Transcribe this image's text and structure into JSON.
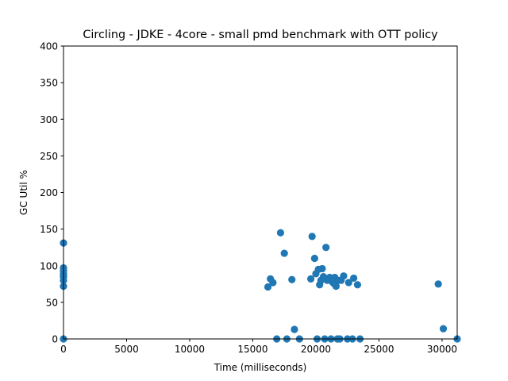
{
  "chart_data": {
    "type": "scatter",
    "title": "Circling - JDKE - 4core -  small pmd benchmark with OTT policy",
    "xlabel": "Time (milliseconds)",
    "ylabel": "GC Util %",
    "xlim": [
      0,
      31200
    ],
    "ylim": [
      0,
      400
    ],
    "xticks": [
      0,
      5000,
      10000,
      15000,
      20000,
      25000,
      30000
    ],
    "yticks": [
      0,
      50,
      100,
      150,
      200,
      250,
      300,
      350,
      400
    ],
    "xtick_labels": [
      "0",
      "5000",
      "10000",
      "15000",
      "20000",
      "25000",
      "30000"
    ],
    "ytick_labels": [
      "0",
      "50",
      "100",
      "150",
      "200",
      "250",
      "300",
      "350",
      "400"
    ],
    "grid": false,
    "marker_color": "#1f77b4",
    "series": [
      {
        "x": [
          0,
          0,
          0,
          0,
          0,
          0,
          0,
          0,
          0,
          16200,
          16400,
          16600,
          16900,
          17200,
          17500,
          17700,
          18100,
          18300,
          18700,
          19600,
          19700,
          19900,
          20000,
          20100,
          20200,
          20300,
          20400,
          20500,
          20600,
          20700,
          20800,
          20900,
          21100,
          21200,
          21300,
          21400,
          21500,
          21600,
          21700,
          21800,
          21900,
          22000,
          22200,
          22500,
          22600,
          22900,
          23000,
          23300,
          23500,
          29700,
          30100,
          31200
        ],
        "y": [
          0,
          72,
          80,
          86,
          89,
          93,
          97,
          131,
          85,
          71,
          82,
          77,
          0,
          145,
          117,
          0,
          81,
          13,
          0,
          82,
          140,
          110,
          89,
          0,
          95,
          74,
          80,
          96,
          85,
          0,
          125,
          80,
          84,
          0,
          78,
          76,
          84,
          72,
          0,
          80,
          0,
          80,
          86,
          0,
          77,
          0,
          83,
          74,
          0,
          75,
          14,
          0
        ]
      }
    ]
  }
}
